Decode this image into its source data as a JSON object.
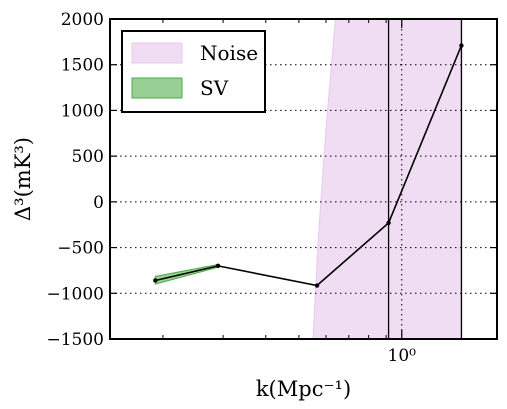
{
  "chart_data": {
    "type": "line",
    "xscale": "log",
    "xlim": [
      0.14,
      1.9
    ],
    "ylim": [
      -1500,
      2000
    ],
    "xticks": [
      {
        "value": 1.0,
        "label": "10⁰"
      }
    ],
    "yticks": [
      {
        "value": 2000,
        "label": "2000"
      },
      {
        "value": 1500,
        "label": "1500"
      },
      {
        "value": 1000,
        "label": "1000"
      },
      {
        "value": 500,
        "label": "500"
      },
      {
        "value": 0,
        "label": "0"
      },
      {
        "value": -500,
        "label": "−500"
      },
      {
        "value": -1000,
        "label": "−1000"
      },
      {
        "value": -1500,
        "label": "−1500"
      }
    ],
    "xlabel": "k(Mpc⁻¹)",
    "ylabel": "Δ³(mK³)",
    "grid": "dotted",
    "legend": {
      "placement": "top-left",
      "entries": [
        {
          "label": "Noise",
          "color": "#f0dcf3",
          "edge": "#e9c8ef"
        },
        {
          "label": "SV",
          "color": "#99cf94",
          "edge": "#4daa4a"
        }
      ]
    },
    "series": [
      {
        "x": [
          0.19,
          0.29,
          0.565,
          0.915,
          1.495
        ],
        "y": [
          -860,
          -700,
          -915,
          -230,
          1710
        ],
        "color": "#000000"
      }
    ],
    "sv_band": {
      "x": [
        0.19,
        0.29
      ],
      "lower": [
        -900,
        -715
      ],
      "upper": [
        -815,
        -685
      ]
    },
    "noise_band": {
      "x": [
        0.55,
        0.57,
        0.6,
        0.64,
        1.5
      ],
      "upper": [
        -1500,
        -400,
        800,
        2000,
        2000
      ],
      "lower": [
        -1500,
        -1500,
        -1500,
        -1500,
        -1500
      ]
    },
    "vlines": [
      0.915,
      1.495
    ]
  }
}
